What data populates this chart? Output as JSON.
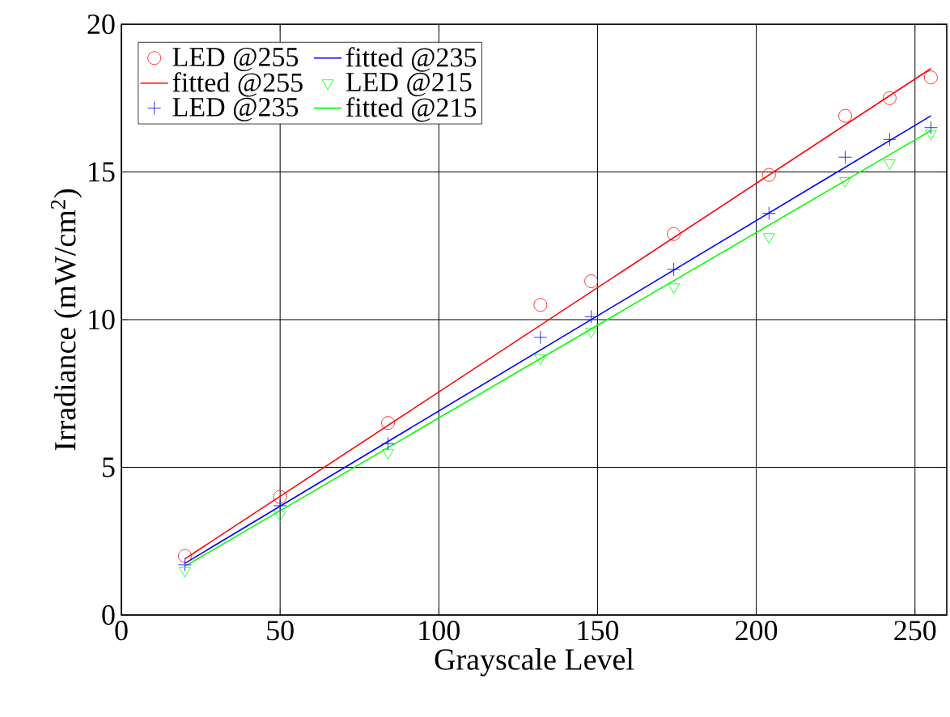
{
  "chart_data": {
    "type": "scatter",
    "xlabel": "Grayscale Level",
    "ylabel": "Irradiance (mW/cm$^{2}$)",
    "xlim": [
      0,
      260
    ],
    "ylim": [
      0,
      20
    ],
    "xticks": [
      0,
      50,
      100,
      150,
      200,
      250
    ],
    "yticks": [
      0,
      5,
      10,
      15,
      20
    ],
    "grid": true,
    "legend": "top left",
    "series": [
      {
        "name": "LED @255",
        "marker": "circle",
        "color": "#ff0000",
        "x": [
          20,
          50,
          84,
          132,
          148,
          174,
          204,
          228,
          242,
          255
        ],
        "values": [
          2.0,
          4.0,
          6.5,
          10.5,
          11.3,
          12.9,
          14.9,
          16.9,
          17.5,
          18.2
        ]
      },
      {
        "name": "fitted @255",
        "type": "line",
        "color": "#ff0000",
        "x": [
          20,
          255
        ],
        "values": [
          1.9,
          18.5
        ]
      },
      {
        "name": "LED @235",
        "marker": "cross",
        "color": "#0000ff",
        "x": [
          20,
          50,
          84,
          132,
          148,
          174,
          204,
          228,
          242,
          255
        ],
        "values": [
          1.7,
          3.7,
          5.8,
          9.4,
          10.1,
          11.7,
          13.6,
          15.5,
          16.1,
          16.5
        ]
      },
      {
        "name": "fitted @235",
        "type": "line",
        "color": "#0000ff",
        "x": [
          20,
          255
        ],
        "values": [
          1.75,
          16.9
        ]
      },
      {
        "name": "LED @215",
        "marker": "triangle",
        "color": "#00ff00",
        "x": [
          20,
          50,
          84,
          132,
          148,
          174,
          204,
          228,
          242,
          255
        ],
        "values": [
          1.5,
          3.4,
          5.5,
          8.7,
          9.6,
          11.1,
          12.8,
          14.7,
          15.3,
          16.3
        ]
      },
      {
        "name": "fitted @215",
        "type": "line",
        "color": "#00ff00",
        "x": [
          20,
          255
        ],
        "values": [
          1.65,
          16.4
        ]
      }
    ]
  }
}
